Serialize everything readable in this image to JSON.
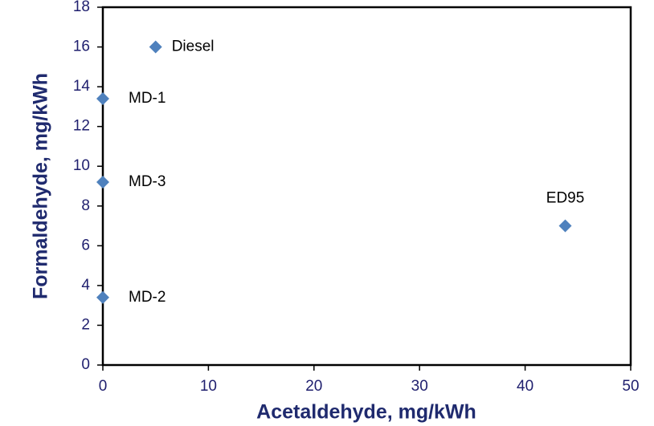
{
  "chart_data": {
    "type": "scatter",
    "x_label": "Acetaldehyde, mg/kWh",
    "y_label": "Formaldehyde, mg/kWh",
    "labels": [
      "Diesel",
      "MD-1",
      "MD-3",
      "MD-2",
      "ED95"
    ],
    "x": [
      5,
      0,
      0,
      0,
      43.8
    ],
    "values": [
      16,
      13.4,
      9.2,
      3.4,
      7.0
    ],
    "color": "#4f81bd",
    "xlim": [
      0,
      50
    ],
    "xticks": [
      0,
      10,
      20,
      30,
      40,
      50
    ],
    "ylim": [
      0,
      18
    ],
    "yticks": [
      0,
      2,
      4,
      6,
      8,
      10,
      12,
      14,
      16,
      18
    ]
  }
}
